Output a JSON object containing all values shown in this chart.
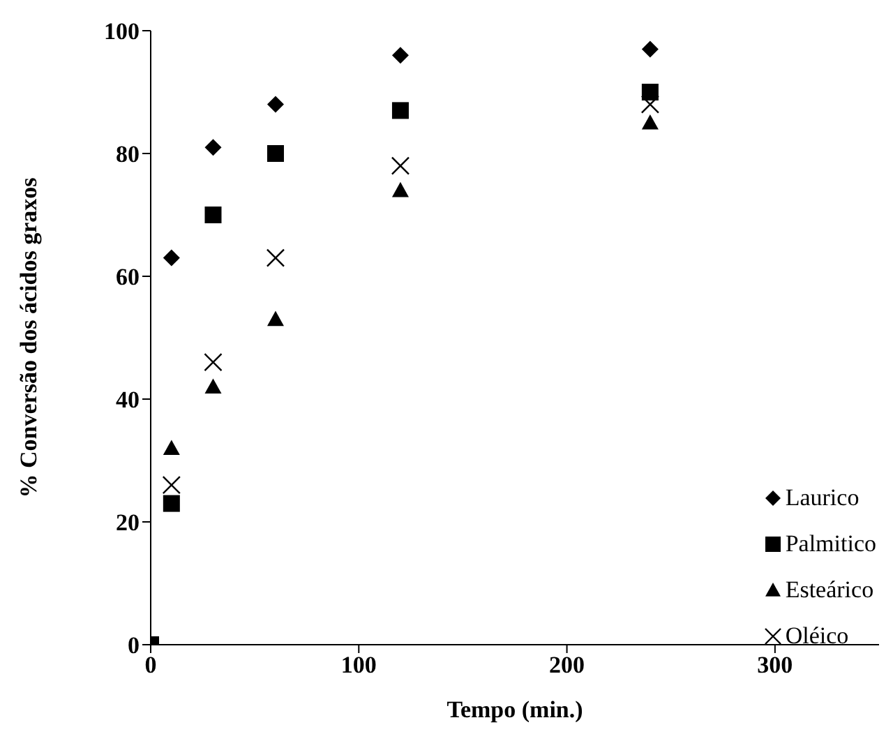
{
  "chart_data": {
    "type": "scatter",
    "xlabel": "Tempo (min.)",
    "ylabel": "% Conversão dos ácidos graxos",
    "x": [
      0,
      10,
      30,
      60,
      120,
      240
    ],
    "series": [
      {
        "name": "Laurico",
        "color": "#000000",
        "marker": "diamond",
        "values": [
          null,
          63,
          81,
          88,
          96,
          97
        ]
      },
      {
        "name": "Palmitico",
        "color": "#000000",
        "marker": "square",
        "values": [
          0,
          23,
          70,
          80,
          87,
          90
        ]
      },
      {
        "name": "Esteárico",
        "color": "#000000",
        "marker": "triangle",
        "values": [
          null,
          32,
          42,
          53,
          74,
          85
        ]
      },
      {
        "name": "Oléico",
        "color": "#000000",
        "marker": "cross",
        "values": [
          null,
          26,
          46,
          63,
          78,
          88
        ]
      }
    ],
    "xlim": [
      0,
      350
    ],
    "xticks": [
      0,
      100,
      200,
      300
    ],
    "ylim": [
      0,
      100
    ],
    "yticks": [
      0,
      20,
      40,
      60,
      80,
      100
    ],
    "grid": false,
    "legend": "right"
  }
}
